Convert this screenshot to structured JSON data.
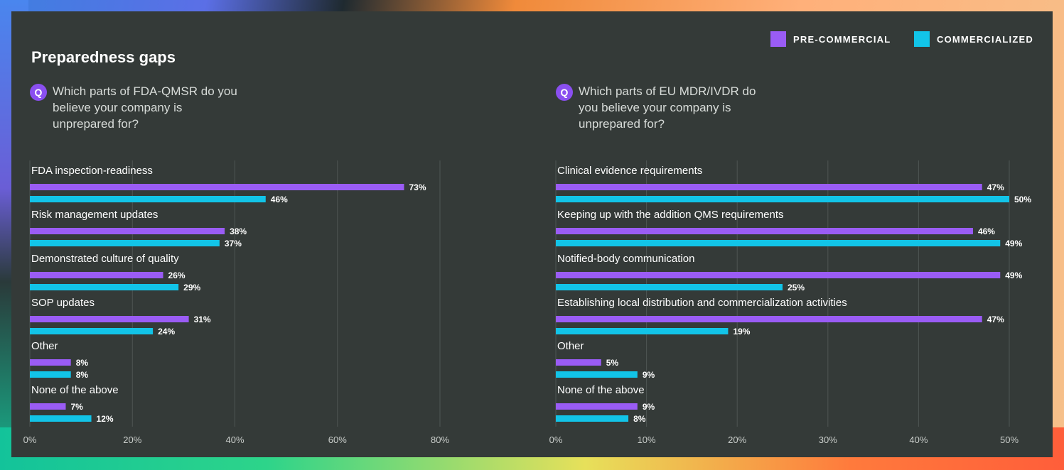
{
  "title": "Preparedness gaps",
  "legend": [
    {
      "label": "PRE-COMMERCIAL",
      "color": "#9a5cf5"
    },
    {
      "label": "COMMERCIALIZED",
      "color": "#12c4e8"
    }
  ],
  "colors": {
    "pre": "#9a5cf5",
    "com": "#12c4e8"
  },
  "questions": {
    "left": {
      "badge": "Q",
      "text": "Which parts of FDA-QMSR do you believe your company is unprepared for?"
    },
    "right": {
      "badge": "Q",
      "text": "Which parts of EU MDR/IVDR do you believe your company is unprepared for?"
    }
  },
  "chart_data": [
    {
      "type": "bar",
      "orientation": "horizontal",
      "categories": [
        "FDA inspection-readiness",
        "Risk management updates",
        "Demonstrated culture of quality",
        "SOP updates",
        "Other",
        "None of the above"
      ],
      "series": [
        {
          "name": "PRE-COMMERCIAL",
          "values": [
            73,
            38,
            26,
            31,
            8,
            7
          ]
        },
        {
          "name": "COMMERCIALIZED",
          "values": [
            46,
            37,
            29,
            24,
            8,
            12
          ]
        }
      ],
      "xlim": [
        0,
        80
      ],
      "xticks": [
        0,
        20,
        40,
        60,
        80
      ],
      "xtick_labels": [
        "0%",
        "20%",
        "40%",
        "60%",
        "80%"
      ],
      "value_suffix": "%",
      "grid": true
    },
    {
      "type": "bar",
      "orientation": "horizontal",
      "categories": [
        "Clinical evidence requirements",
        "Keeping up with the addition QMS requirements",
        "Notified-body communication",
        "Establishing local distribution and commercialization activities",
        "Other",
        "None of the above"
      ],
      "series": [
        {
          "name": "PRE-COMMERCIAL",
          "values": [
            47,
            46,
            49,
            47,
            5,
            9
          ]
        },
        {
          "name": "COMMERCIALIZED",
          "values": [
            50,
            49,
            25,
            19,
            9,
            8
          ]
        }
      ],
      "xlim": [
        0,
        50
      ],
      "xticks": [
        0,
        10,
        20,
        30,
        40,
        50
      ],
      "xtick_labels": [
        "0%",
        "10%",
        "20%",
        "30%",
        "40%",
        "50%"
      ],
      "value_suffix": "%",
      "grid": true
    }
  ]
}
